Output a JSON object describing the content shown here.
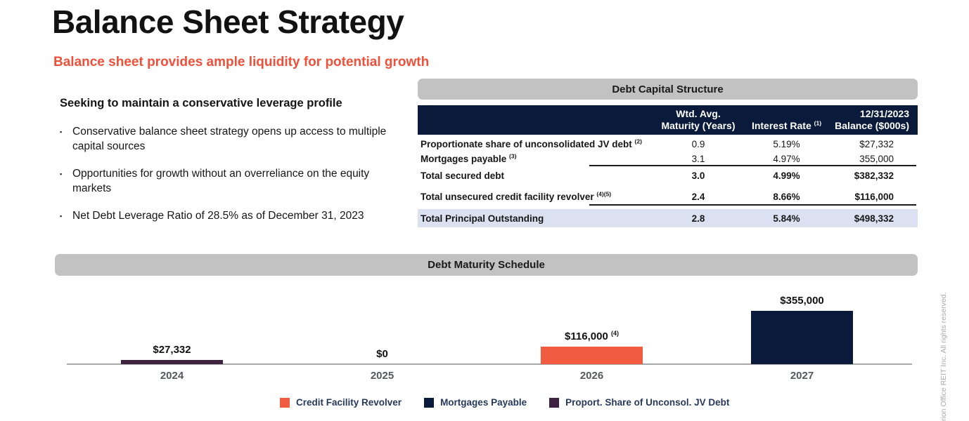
{
  "page": {
    "title": "Balance Sheet Strategy",
    "subtitle": "Balance sheet provides ample liquidity for potential growth"
  },
  "left_panel": {
    "heading": "Seeking to maintain a conservative leverage profile",
    "bullets": [
      "Conservative balance sheet strategy opens up access to multiple capital sources",
      "Opportunities for growth without an overreliance on the equity markets",
      "Net Debt Leverage Ratio of 28.5% as of December 31, 2023"
    ]
  },
  "debt_table": {
    "panel_title": "Debt Capital Structure",
    "columns": {
      "maturity_line1": "Wtd. Avg.",
      "maturity_line2": "Maturity (Years)",
      "interest": "Interest Rate ",
      "interest_note": "(1)",
      "balance_line1": "12/31/2023",
      "balance_line2": "Balance ($000s)"
    },
    "rows": [
      {
        "label": "Proportionate share of unconsolidated JV debt ",
        "note": "(2)",
        "maturity": "0.9",
        "rate": "5.19%",
        "balance": "$27,332"
      },
      {
        "label": "Mortgages payable ",
        "note": "(3)",
        "maturity": "3.1",
        "rate": "4.97%",
        "balance": "355,000"
      },
      {
        "label": "Total secured debt",
        "note": "",
        "maturity": "3.0",
        "rate": "4.99%",
        "balance": "$382,332"
      },
      {
        "label": "Total unsecured credit facility revolver ",
        "note": "(4)(5)",
        "maturity": "2.4",
        "rate": "8.66%",
        "balance": "$116,000"
      },
      {
        "label": "Total Principal Outstanding",
        "note": "",
        "maturity": "2.8",
        "rate": "5.84%",
        "balance": "$498,332"
      }
    ]
  },
  "chart_data": {
    "type": "bar",
    "title": "Debt Maturity Schedule",
    "categories": [
      "2024",
      "2025",
      "2026",
      "2027"
    ],
    "values": [
      27332,
      0,
      116000,
      355000
    ],
    "value_labels": [
      "$27,332",
      "$0",
      "$116,000 ",
      "$355,000"
    ],
    "label_notes": [
      "",
      "",
      "(4)",
      ""
    ],
    "bar_colors": [
      "#3E2240",
      "#3E2240",
      "#F15B40",
      "#0A1A3A"
    ],
    "units": "$000s",
    "xlabel": "",
    "ylabel": "",
    "ylim": [
      0,
      380000
    ],
    "grid": false,
    "legend_position": "bottom",
    "legend": [
      {
        "label": "Credit Facility Revolver",
        "color": "#F15B40"
      },
      {
        "label": "Mortgages Payable",
        "color": "#0A1A3A"
      },
      {
        "label": "Proport. Share of Unconsol. JV Debt",
        "color": "#3E2240"
      }
    ]
  },
  "footer": {
    "vertical_text": "rion Office REIT Inc. All rights reserved."
  },
  "colors": {
    "accent_orange": "#F0503A",
    "navy": "#0A1A3A",
    "purple": "#3E2240",
    "panel_gray": "#C2C2C2",
    "highlight_row": "#DCE1F1"
  }
}
